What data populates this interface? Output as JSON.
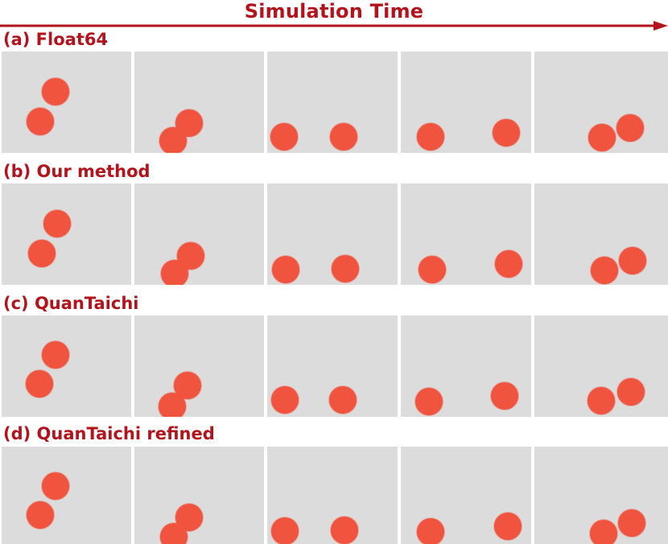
{
  "header": {
    "title": "Simulation Time",
    "accent_color": "#b5131b",
    "arrow_icon": "arrow-right-icon"
  },
  "panel_color": "#dcdcdc",
  "ball_color": "#f0533e",
  "rows": [
    {
      "label": "(a) Float64"
    },
    {
      "label": "(b) Our method"
    },
    {
      "label": "(c) QuanTaichi"
    },
    {
      "label": "(d) QuanTaichi refined"
    }
  ]
}
